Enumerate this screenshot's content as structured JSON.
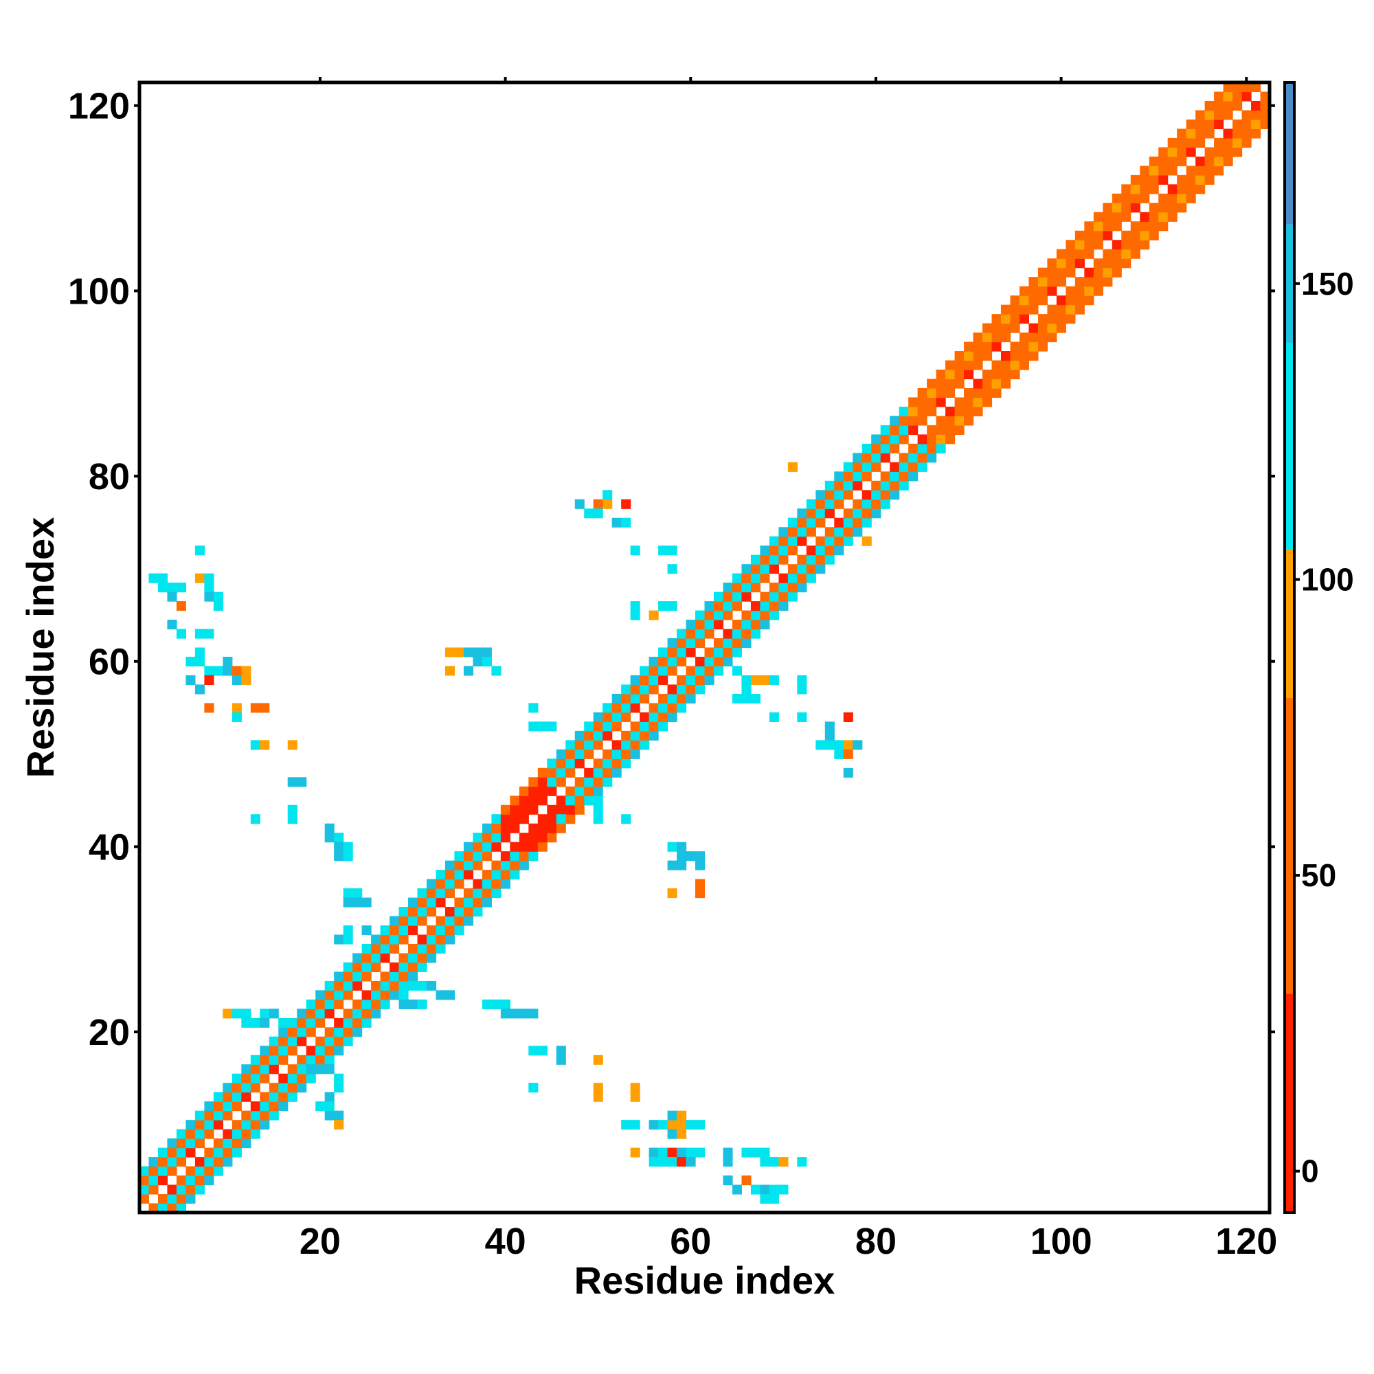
{
  "chart_data": {
    "type": "heatmap",
    "title": "",
    "xlabel": "Residue index",
    "ylabel": "Residue index",
    "xlim": [
      0.5,
      122.5
    ],
    "ylim": [
      0.5,
      122.5
    ],
    "x_ticks": [
      20,
      40,
      60,
      80,
      100,
      120
    ],
    "y_ticks": [
      20,
      40,
      60,
      80,
      100,
      120
    ],
    "colorbar": {
      "range": [
        -7,
        184
      ],
      "ticks": [
        0,
        50,
        100,
        150
      ],
      "bands": [
        {
          "from": -7,
          "to": 30,
          "color": "#ff2000"
        },
        {
          "from": 30,
          "to": 80,
          "color": "#ff6a00"
        },
        {
          "from": 80,
          "to": 105,
          "color": "#ffa000"
        },
        {
          "from": 105,
          "to": 140,
          "color": "#00e5ee"
        },
        {
          "from": 140,
          "to": 160,
          "color": "#19c0e0"
        },
        {
          "from": 160,
          "to": 184,
          "color": "#4a8cc8"
        }
      ]
    },
    "diagonal": {
      "start": 1,
      "end": 122,
      "description_bands": [
        {
          "offset": 1,
          "value": 45
        },
        {
          "offset": 2,
          "value": 120
        },
        {
          "offset": 3,
          "value": 45
        },
        {
          "offset": 4,
          "value": 120
        }
      ],
      "helix_regions": [
        [
          40,
          44
        ],
        [
          84,
          122
        ]
      ],
      "strand_regions": [
        [
          2,
          20
        ],
        [
          22,
          36
        ],
        [
          47,
          66
        ],
        [
          67,
          82
        ]
      ]
    },
    "off_diagonal_cells": [
      [
        2,
        69,
        120
      ],
      [
        3,
        69,
        120
      ],
      [
        3,
        68,
        120
      ],
      [
        4,
        68,
        120
      ],
      [
        4,
        67,
        150
      ],
      [
        5,
        66,
        60
      ],
      [
        5,
        68,
        120
      ],
      [
        4,
        64,
        150
      ],
      [
        5,
        63,
        120
      ],
      [
        7,
        63,
        120
      ],
      [
        8,
        63,
        120
      ],
      [
        7,
        69,
        80
      ],
      [
        8,
        69,
        120
      ],
      [
        8,
        68,
        120
      ],
      [
        8,
        67,
        150
      ],
      [
        9,
        67,
        120
      ],
      [
        9,
        66,
        120
      ],
      [
        7,
        72,
        120
      ],
      [
        6,
        60,
        120
      ],
      [
        7,
        60,
        120
      ],
      [
        7,
        61,
        120
      ],
      [
        8,
        59,
        120
      ],
      [
        9,
        59,
        120
      ],
      [
        10,
        59,
        150
      ],
      [
        10,
        60,
        150
      ],
      [
        11,
        59,
        60
      ],
      [
        12,
        59,
        80
      ],
      [
        11,
        58,
        150
      ],
      [
        12,
        58,
        80
      ],
      [
        6,
        58,
        150
      ],
      [
        7,
        57,
        150
      ],
      [
        8,
        58,
        20
      ],
      [
        8,
        55,
        60
      ],
      [
        11,
        55,
        80
      ],
      [
        11,
        54,
        120
      ],
      [
        13,
        55,
        60
      ],
      [
        14,
        55,
        60
      ],
      [
        13,
        51,
        120
      ],
      [
        14,
        51,
        80
      ],
      [
        17,
        51,
        80
      ],
      [
        17,
        47,
        150
      ],
      [
        18,
        47,
        150
      ],
      [
        13,
        43,
        120
      ],
      [
        17,
        43,
        120
      ],
      [
        17,
        44,
        120
      ],
      [
        21,
        42,
        150
      ],
      [
        21,
        41,
        150
      ],
      [
        22,
        41,
        120
      ],
      [
        22,
        40,
        150
      ],
      [
        22,
        39,
        150
      ],
      [
        23,
        39,
        120
      ],
      [
        23,
        40,
        120
      ],
      [
        58,
        40,
        120
      ],
      [
        59,
        40,
        150
      ],
      [
        59,
        39,
        150
      ],
      [
        60,
        39,
        150
      ],
      [
        61,
        39,
        150
      ],
      [
        61,
        38,
        150
      ],
      [
        59,
        38,
        150
      ],
      [
        58,
        38,
        150
      ],
      [
        58,
        35,
        80
      ],
      [
        61,
        36,
        60
      ],
      [
        61,
        35,
        60
      ],
      [
        46,
        43,
        120
      ],
      [
        50,
        43,
        120
      ],
      [
        53,
        43,
        120
      ],
      [
        50,
        44,
        120
      ],
      [
        50,
        45,
        120
      ],
      [
        34,
        61,
        80
      ],
      [
        35,
        61,
        80
      ],
      [
        36,
        61,
        150
      ],
      [
        37,
        61,
        150
      ],
      [
        38,
        61,
        150
      ],
      [
        37,
        60,
        150
      ],
      [
        38,
        60,
        120
      ],
      [
        39,
        59,
        120
      ],
      [
        34,
        59,
        80
      ],
      [
        36,
        59,
        150
      ],
      [
        43,
        55,
        120
      ],
      [
        43,
        53,
        120
      ],
      [
        44,
        53,
        120
      ],
      [
        45,
        53,
        120
      ],
      [
        48,
        77,
        150
      ],
      [
        50,
        77,
        60
      ],
      [
        51,
        77,
        80
      ],
      [
        51,
        78,
        120
      ],
      [
        53,
        77,
        20
      ],
      [
        49,
        76,
        120
      ],
      [
        50,
        76,
        120
      ],
      [
        52,
        75,
        150
      ],
      [
        53,
        75,
        120
      ],
      [
        54,
        72,
        120
      ],
      [
        57,
        72,
        120
      ],
      [
        58,
        72,
        120
      ],
      [
        58,
        70,
        120
      ],
      [
        54,
        66,
        120
      ],
      [
        54,
        65,
        120
      ],
      [
        56,
        65,
        80
      ],
      [
        57,
        66,
        120
      ],
      [
        58,
        66,
        120
      ],
      [
        65,
        59,
        120
      ],
      [
        66,
        58,
        120
      ],
      [
        67,
        58,
        80
      ],
      [
        68,
        58,
        80
      ],
      [
        69,
        58,
        120
      ],
      [
        72,
        58,
        120
      ],
      [
        72,
        57,
        120
      ],
      [
        66,
        57,
        120
      ],
      [
        65,
        56,
        120
      ],
      [
        66,
        56,
        120
      ],
      [
        67,
        56,
        120
      ],
      [
        69,
        54,
        120
      ],
      [
        72,
        54,
        120
      ],
      [
        75,
        53,
        150
      ],
      [
        75,
        52,
        150
      ],
      [
        77,
        54,
        20
      ],
      [
        74,
        51,
        120
      ],
      [
        75,
        51,
        120
      ],
      [
        76,
        51,
        120
      ],
      [
        77,
        51,
        80
      ],
      [
        78,
        51,
        150
      ],
      [
        76,
        50,
        120
      ],
      [
        77,
        50,
        60
      ],
      [
        77,
        48,
        150
      ],
      [
        71,
        81,
        80
      ],
      [
        79,
        76,
        60
      ],
      [
        79,
        73,
        80
      ],
      [
        10,
        22,
        80
      ],
      [
        11,
        22,
        120
      ],
      [
        12,
        22,
        120
      ],
      [
        14,
        22,
        120
      ],
      [
        15,
        22,
        150
      ],
      [
        12,
        21,
        120
      ],
      [
        13,
        21,
        120
      ],
      [
        14,
        21,
        150
      ],
      [
        16,
        21,
        120
      ],
      [
        23,
        35,
        120
      ],
      [
        24,
        35,
        120
      ],
      [
        23,
        34,
        150
      ],
      [
        24,
        34,
        150
      ],
      [
        25,
        34,
        150
      ],
      [
        23,
        31,
        120
      ],
      [
        25,
        31,
        150
      ],
      [
        22,
        30,
        150
      ],
      [
        23,
        30,
        120
      ],
      [
        29,
        24,
        120
      ],
      [
        30,
        25,
        120
      ],
      [
        31,
        25,
        120
      ],
      [
        32,
        25,
        150
      ],
      [
        33,
        24,
        150
      ],
      [
        34,
        24,
        150
      ],
      [
        29,
        23,
        150
      ],
      [
        30,
        23,
        150
      ],
      [
        31,
        23,
        120
      ],
      [
        38,
        23,
        120
      ],
      [
        39,
        23,
        120
      ],
      [
        40,
        23,
        120
      ],
      [
        40,
        22,
        150
      ],
      [
        41,
        22,
        150
      ],
      [
        42,
        22,
        150
      ],
      [
        43,
        22,
        150
      ],
      [
        43,
        18,
        120
      ],
      [
        44,
        18,
        120
      ],
      [
        46,
        18,
        150
      ],
      [
        46,
        17,
        150
      ],
      [
        50,
        17,
        80
      ],
      [
        43,
        14,
        120
      ],
      [
        50,
        14,
        80
      ],
      [
        50,
        13,
        80
      ],
      [
        54,
        14,
        80
      ],
      [
        54,
        13,
        80
      ],
      [
        53,
        10,
        120
      ],
      [
        54,
        10,
        120
      ],
      [
        56,
        10,
        150
      ],
      [
        57,
        10,
        120
      ],
      [
        58,
        10,
        80
      ],
      [
        58,
        11,
        150
      ],
      [
        59,
        11,
        80
      ],
      [
        59,
        10,
        80
      ],
      [
        60,
        10,
        120
      ],
      [
        61,
        10,
        120
      ],
      [
        58,
        9,
        150
      ],
      [
        59,
        9,
        80
      ],
      [
        54,
        7,
        80
      ],
      [
        56,
        7,
        150
      ],
      [
        57,
        7,
        120
      ],
      [
        58,
        7,
        20
      ],
      [
        59,
        7,
        150
      ],
      [
        60,
        7,
        120
      ],
      [
        61,
        7,
        120
      ],
      [
        64,
        7,
        150
      ],
      [
        56,
        6,
        120
      ],
      [
        57,
        6,
        120
      ],
      [
        58,
        6,
        120
      ],
      [
        59,
        6,
        20
      ],
      [
        60,
        6,
        150
      ],
      [
        66,
        7,
        120
      ],
      [
        67,
        7,
        120
      ],
      [
        68,
        7,
        120
      ],
      [
        69,
        6,
        120
      ],
      [
        70,
        6,
        80
      ],
      [
        68,
        6,
        120
      ],
      [
        72,
        6,
        120
      ],
      [
        64,
        6,
        150
      ],
      [
        64,
        4,
        150
      ],
      [
        65,
        3,
        150
      ],
      [
        66,
        4,
        60
      ],
      [
        67,
        3,
        120
      ],
      [
        68,
        3,
        150
      ],
      [
        69,
        3,
        120
      ],
      [
        69,
        2,
        120
      ],
      [
        68,
        2,
        120
      ],
      [
        70,
        3,
        120
      ],
      [
        18,
        16,
        120
      ],
      [
        19,
        16,
        150
      ],
      [
        20,
        16,
        150
      ],
      [
        21,
        16,
        150
      ],
      [
        22,
        15,
        120
      ],
      [
        22,
        14,
        120
      ],
      [
        21,
        13,
        150
      ],
      [
        21,
        11,
        150
      ],
      [
        22,
        11,
        150
      ],
      [
        22,
        10,
        80
      ],
      [
        20,
        12,
        120
      ],
      [
        21,
        12,
        120
      ]
    ]
  }
}
